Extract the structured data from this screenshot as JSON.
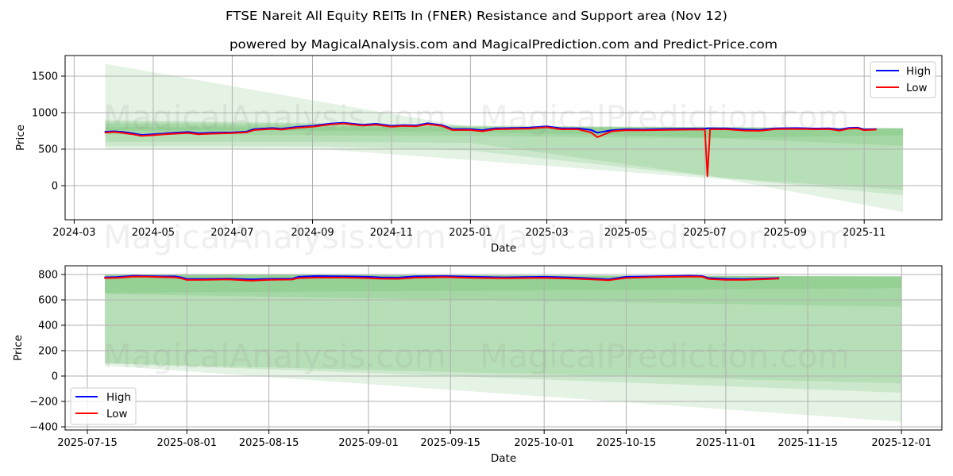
{
  "page": {
    "title": "FTSE Nareit All Equity REITs In (FNER) Resistance and Support area (Nov 12)",
    "subtitle": "powered by MagicalAnalysis.com and MagicalPrediction.com and Predict-Price.com",
    "watermarks": [
      "MagicalAnalysis.com",
      "MagicalPrediction.com"
    ]
  },
  "colors": {
    "band": "#2ca02c",
    "band_alpha": 0.13,
    "grid": "#b0b0b0",
    "high": "#0000ff",
    "low": "#ff0000"
  },
  "chart_data": [
    {
      "type": "line",
      "title": "powered by MagicalAnalysis.com and MagicalPrediction.com and Predict-Price.com",
      "xlabel": "Date",
      "ylabel": "Price",
      "xlim": [
        "2024-02-23",
        "2025-12-31"
      ],
      "ylim": [
        -467,
        1783
      ],
      "grid": true,
      "legend": {
        "position": "upper right",
        "entries": [
          {
            "label": "High",
            "color": "#0000ff"
          },
          {
            "label": "Low",
            "color": "#ff0000"
          }
        ]
      },
      "xticks": [
        {
          "date": "2024-03-01",
          "label": "2024-03"
        },
        {
          "date": "2024-05-01",
          "label": "2024-05"
        },
        {
          "date": "2024-07-01",
          "label": "2024-07"
        },
        {
          "date": "2024-09-01",
          "label": "2024-09"
        },
        {
          "date": "2024-11-01",
          "label": "2024-11"
        },
        {
          "date": "2025-01-01",
          "label": "2025-01"
        },
        {
          "date": "2025-03-01",
          "label": "2025-03"
        },
        {
          "date": "2025-05-01",
          "label": "2025-05"
        },
        {
          "date": "2025-07-01",
          "label": "2025-07"
        },
        {
          "date": "2025-09-01",
          "label": "2025-09"
        },
        {
          "date": "2025-11-01",
          "label": "2025-11"
        }
      ],
      "yticks": [
        {
          "value": 0,
          "label": "0"
        },
        {
          "value": 500,
          "label": "500"
        },
        {
          "value": 1000,
          "label": "1000"
        },
        {
          "value": 1500,
          "label": "1500"
        }
      ],
      "x": [
        "2024-03-25",
        "2024-04-01",
        "2024-04-08",
        "2024-04-15",
        "2024-04-22",
        "2024-05-01",
        "2024-05-15",
        "2024-05-28",
        "2024-06-05",
        "2024-06-15",
        "2024-07-01",
        "2024-07-12",
        "2024-07-18",
        "2024-08-01",
        "2024-08-08",
        "2024-08-20",
        "2024-09-01",
        "2024-09-15",
        "2024-09-25",
        "2024-10-10",
        "2024-10-20",
        "2024-11-01",
        "2024-11-10",
        "2024-11-20",
        "2024-11-29",
        "2024-12-10",
        "2024-12-18",
        "2025-01-01",
        "2025-01-10",
        "2025-01-20",
        "2025-02-01",
        "2025-02-15",
        "2025-03-01",
        "2025-03-12",
        "2025-03-25",
        "2025-04-04",
        "2025-04-09",
        "2025-04-20",
        "2025-05-01",
        "2025-05-15",
        "2025-06-01",
        "2025-06-20",
        "2025-07-01",
        "2025-07-03",
        "2025-07-05",
        "2025-07-18",
        "2025-08-01",
        "2025-08-12",
        "2025-08-25",
        "2025-09-10",
        "2025-09-25",
        "2025-10-05",
        "2025-10-13",
        "2025-10-20",
        "2025-10-27",
        "2025-11-01",
        "2025-11-10"
      ],
      "series": [
        {
          "name": "High",
          "color": "#0000ff",
          "values": [
            740,
            745,
            735,
            718,
            695,
            705,
            722,
            735,
            718,
            725,
            730,
            740,
            775,
            790,
            780,
            805,
            820,
            850,
            862,
            835,
            848,
            820,
            830,
            825,
            855,
            830,
            775,
            775,
            760,
            785,
            790,
            795,
            812,
            785,
            785,
            765,
            725,
            760,
            772,
            770,
            778,
            780,
            782,
            785,
            785,
            784,
            770,
            765,
            785,
            790,
            783,
            785,
            768,
            792,
            795,
            770,
            775
          ]
        },
        {
          "name": "Low",
          "color": "#ff0000",
          "values": [
            728,
            735,
            722,
            705,
            682,
            692,
            710,
            722,
            705,
            712,
            720,
            730,
            762,
            778,
            768,
            793,
            808,
            838,
            850,
            822,
            835,
            808,
            818,
            812,
            842,
            818,
            762,
            762,
            745,
            772,
            778,
            782,
            800,
            772,
            772,
            730,
            665,
            745,
            760,
            758,
            765,
            768,
            770,
            130,
            772,
            772,
            755,
            752,
            775,
            778,
            772,
            775,
            755,
            780,
            785,
            760,
            768
          ]
        }
      ],
      "bands": [
        {
          "x": [
            "2024-03-25",
            "2024-09-01",
            "2025-01-01",
            "2025-07-18",
            "2025-12-01"
          ],
          "upper": [
            1670,
            1170,
            800,
            795,
            785
          ],
          "lower": [
            500,
            510,
            350,
            83,
            -360
          ]
        },
        {
          "x": [
            "2024-03-25",
            "2024-09-01",
            "2025-01-01",
            "2025-07-18",
            "2025-12-01"
          ],
          "upper": [
            900,
            860,
            825,
            800,
            785
          ],
          "lower": [
            540,
            540,
            480,
            100,
            -131
          ]
        },
        {
          "x": [
            "2024-03-25",
            "2024-09-01",
            "2025-01-01",
            "2025-07-18",
            "2025-12-01"
          ],
          "upper": [
            880,
            850,
            820,
            800,
            785
          ],
          "lower": [
            600,
            600,
            587,
            100,
            -58
          ]
        },
        {
          "x": [
            "2024-03-25",
            "2024-09-01",
            "2025-01-01",
            "2025-07-18",
            "2025-12-01"
          ],
          "upper": [
            850,
            830,
            810,
            800,
            785
          ],
          "lower": [
            700,
            690,
            680,
            646,
            546
          ]
        },
        {
          "x": [
            "2024-03-25",
            "2024-09-01",
            "2025-01-01",
            "2025-07-18",
            "2025-12-01"
          ],
          "upper": [
            800,
            800,
            800,
            802,
            785
          ],
          "lower": [
            760,
            750,
            740,
            656,
            692
          ]
        }
      ]
    },
    {
      "type": "line",
      "title": "",
      "xlabel": "Date",
      "ylabel": "Price",
      "xlim": [
        "2025-07-11T05:00:00Z",
        "2025-12-07T21:30:00Z"
      ],
      "ylim": [
        -425,
        869
      ],
      "grid": true,
      "legend": {
        "position": "lower left",
        "entries": [
          {
            "label": "High",
            "color": "#0000ff"
          },
          {
            "label": "Low",
            "color": "#ff0000"
          }
        ]
      },
      "xticks": [
        {
          "date": "2025-07-15",
          "label": "2025-07-15"
        },
        {
          "date": "2025-08-01",
          "label": "2025-08-01"
        },
        {
          "date": "2025-08-15",
          "label": "2025-08-15"
        },
        {
          "date": "2025-09-01",
          "label": "2025-09-01"
        },
        {
          "date": "2025-09-15",
          "label": "2025-09-15"
        },
        {
          "date": "2025-10-01",
          "label": "2025-10-01"
        },
        {
          "date": "2025-10-15",
          "label": "2025-10-15"
        },
        {
          "date": "2025-11-01",
          "label": "2025-11-01"
        },
        {
          "date": "2025-11-15",
          "label": "2025-11-15"
        },
        {
          "date": "2025-12-01",
          "label": "2025-12-01"
        }
      ],
      "yticks": [
        {
          "value": -400,
          "label": "−400"
        },
        {
          "value": -200,
          "label": "−200"
        },
        {
          "value": 0,
          "label": "0"
        },
        {
          "value": 200,
          "label": "200"
        },
        {
          "value": 400,
          "label": "400"
        },
        {
          "value": 600,
          "label": "600"
        },
        {
          "value": 800,
          "label": "800"
        }
      ],
      "x": [
        "2025-07-18",
        "2025-07-20",
        "2025-07-23",
        "2025-07-25",
        "2025-07-28",
        "2025-07-30",
        "2025-07-31",
        "2025-08-01",
        "2025-08-04",
        "2025-08-08",
        "2025-08-12",
        "2025-08-15",
        "2025-08-19",
        "2025-08-20",
        "2025-08-23",
        "2025-08-28",
        "2025-09-01",
        "2025-09-03",
        "2025-09-06",
        "2025-09-09",
        "2025-09-14",
        "2025-09-19",
        "2025-09-24",
        "2025-10-01",
        "2025-10-06",
        "2025-10-12",
        "2025-10-15",
        "2025-10-20",
        "2025-10-26",
        "2025-10-28",
        "2025-10-29",
        "2025-11-01",
        "2025-11-04",
        "2025-11-07",
        "2025-11-10"
      ],
      "series": [
        {
          "name": "High",
          "color": "#0000ff",
          "values": [
            778,
            780,
            790,
            788,
            785,
            785,
            778,
            765,
            765,
            768,
            762,
            766,
            768,
            782,
            788,
            785,
            782,
            778,
            776,
            785,
            788,
            782,
            778,
            782,
            776,
            762,
            782,
            786,
            790,
            788,
            772,
            766,
            764,
            768,
            772
          ]
        },
        {
          "name": "Low",
          "color": "#ff0000",
          "values": [
            772,
            774,
            784,
            783,
            779,
            778,
            770,
            757,
            758,
            761,
            752,
            758,
            760,
            772,
            776,
            776,
            772,
            768,
            766,
            775,
            780,
            774,
            770,
            774,
            768,
            755,
            774,
            780,
            784,
            782,
            765,
            758,
            758,
            762,
            768
          ]
        }
      ],
      "bands": [
        {
          "x": [
            "2025-07-18",
            "2025-12-01"
          ],
          "upper": [
            802,
            785
          ],
          "lower": [
            83,
            -360
          ]
        },
        {
          "x": [
            "2025-07-18",
            "2025-12-01"
          ],
          "upper": [
            802,
            785
          ],
          "lower": [
            100,
            -131
          ]
        },
        {
          "x": [
            "2025-07-18",
            "2025-12-01"
          ],
          "upper": [
            802,
            785
          ],
          "lower": [
            100,
            -58
          ]
        },
        {
          "x": [
            "2025-07-18",
            "2025-12-01"
          ],
          "upper": [
            802,
            785
          ],
          "lower": [
            646,
            546
          ]
        },
        {
          "x": [
            "2025-07-18",
            "2025-12-01"
          ],
          "upper": [
            802,
            785
          ],
          "lower": [
            656,
            692
          ]
        }
      ]
    }
  ]
}
